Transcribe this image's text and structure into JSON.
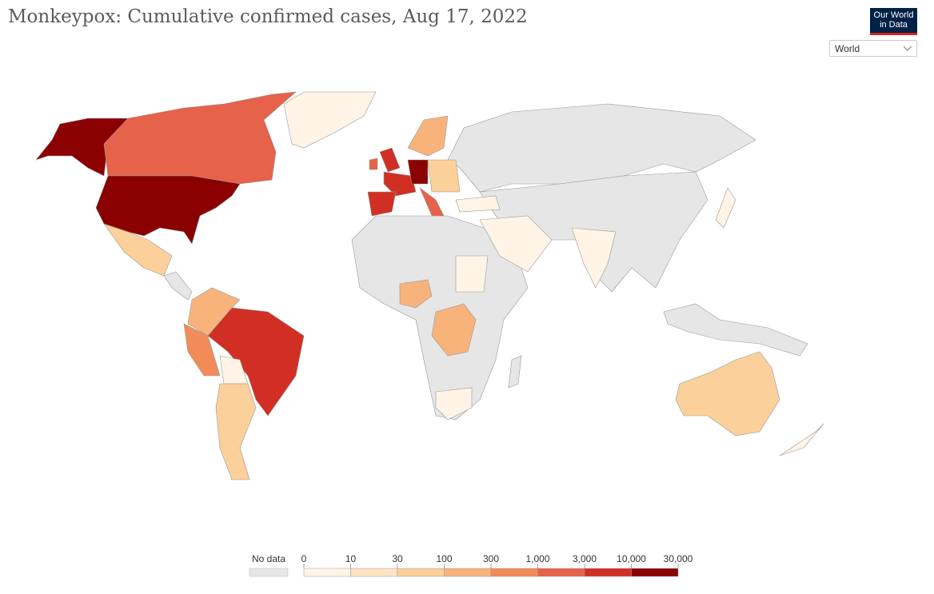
{
  "header": {
    "title": "Monkeypox: Cumulative confirmed cases, Aug 17, 2022",
    "logo": [
      "Our World",
      "in Data"
    ]
  },
  "controls": {
    "region_select": "World"
  },
  "legend": {
    "no_data_label": "No data",
    "no_data_color": "#e6e6e6",
    "ticks": [
      0,
      10,
      30,
      100,
      300,
      {
        "value": 1000,
        "label": "1,000"
      },
      {
        "value": 3000,
        "label": "3,000"
      },
      {
        "value": 10000,
        "label": "10,000"
      },
      {
        "value": 30000,
        "label": "30,000"
      }
    ],
    "colors": [
      "#fff4e6",
      "#fde3c0",
      "#fcd09a",
      "#f8b37a",
      "#f28b57",
      "#e6624a",
      "#d22f24",
      "#8b0000"
    ]
  }
}
